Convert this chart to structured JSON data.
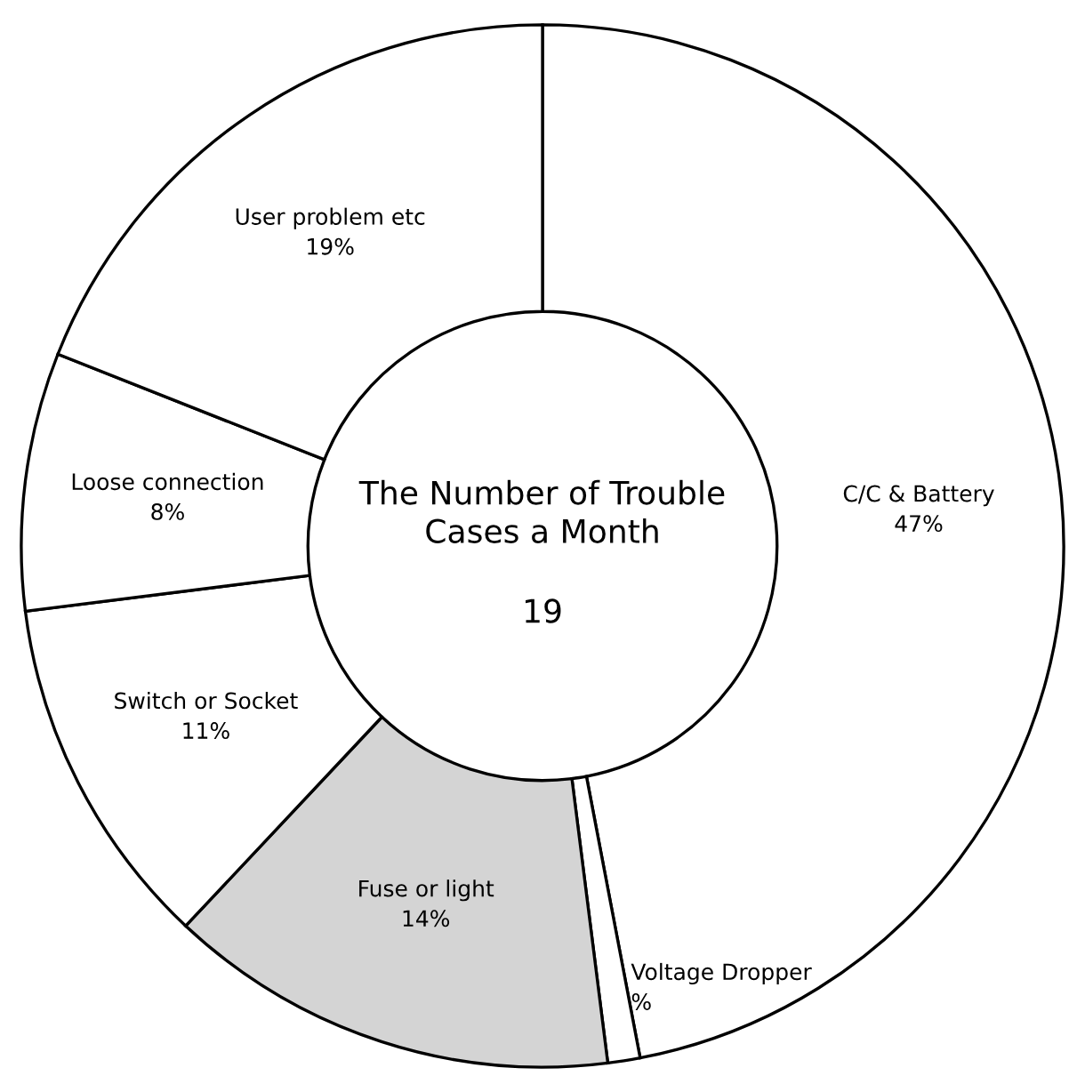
{
  "chart_data": {
    "type": "donut",
    "title": "The Number of Trouble Cases a Month",
    "annotations": [
      "19"
    ],
    "categories": [
      "C/C & Battery",
      "Voltage Dropper",
      "Fuse or light",
      "Switch or Socket",
      "Loose connection",
      "User problem etc"
    ],
    "values": [
      47,
      1,
      14,
      11,
      8,
      19
    ],
    "value_labels": [
      "47%",
      "%",
      "14%",
      "11%",
      "8%",
      "19%"
    ],
    "colors": [
      "#ffffff",
      "#ffffff",
      "#d4d4d4",
      "#ffffff",
      "#ffffff",
      "#ffffff"
    ],
    "legend": false
  }
}
